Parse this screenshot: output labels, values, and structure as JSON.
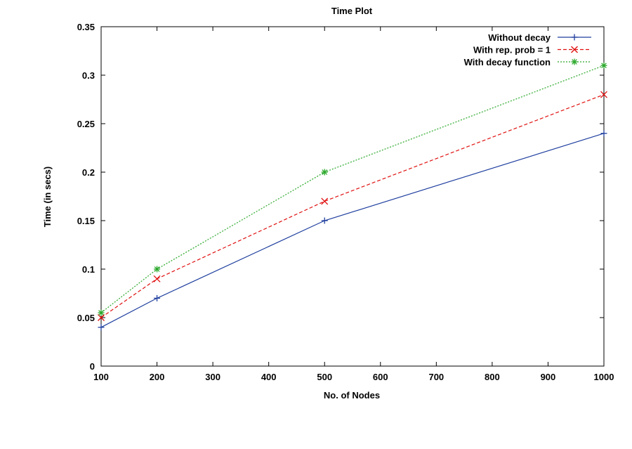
{
  "chart_data": {
    "type": "line",
    "title": "Time Plot",
    "xlabel": "No. of Nodes",
    "ylabel": "Time (in secs)",
    "xlim": [
      100,
      1000
    ],
    "ylim": [
      0,
      0.35
    ],
    "x_ticks": [
      "100",
      "200",
      "300",
      "400",
      "500",
      "600",
      "700",
      "800",
      "900",
      "1000"
    ],
    "y_ticks": [
      "0",
      "0.05",
      "0.1",
      "0.15",
      "0.2",
      "0.25",
      "0.3",
      "0.35"
    ],
    "x_tick_values": [
      100,
      200,
      300,
      400,
      500,
      600,
      700,
      800,
      900,
      1000
    ],
    "y_tick_values": [
      0,
      0.05,
      0.1,
      0.15,
      0.2,
      0.25,
      0.3,
      0.35
    ],
    "grid": false,
    "legend_position": "top-right",
    "series": [
      {
        "name": "Without decay",
        "color": "#1f3f9f",
        "marker": "plus",
        "dash": "solid",
        "x": [
          100,
          200,
          500,
          1000
        ],
        "y": [
          0.04,
          0.07,
          0.15,
          0.24
        ]
      },
      {
        "name": "With rep. prob = 1",
        "color": "#e01010",
        "marker": "cross",
        "dash": "dashed",
        "x": [
          100,
          200,
          500,
          1000
        ],
        "y": [
          0.05,
          0.09,
          0.17,
          0.28
        ]
      },
      {
        "name": "With decay function",
        "color": "#2aa82a",
        "marker": "star",
        "dash": "dotted",
        "x": [
          100,
          200,
          500,
          1000
        ],
        "y": [
          0.055,
          0.1,
          0.2,
          0.31
        ]
      }
    ]
  }
}
